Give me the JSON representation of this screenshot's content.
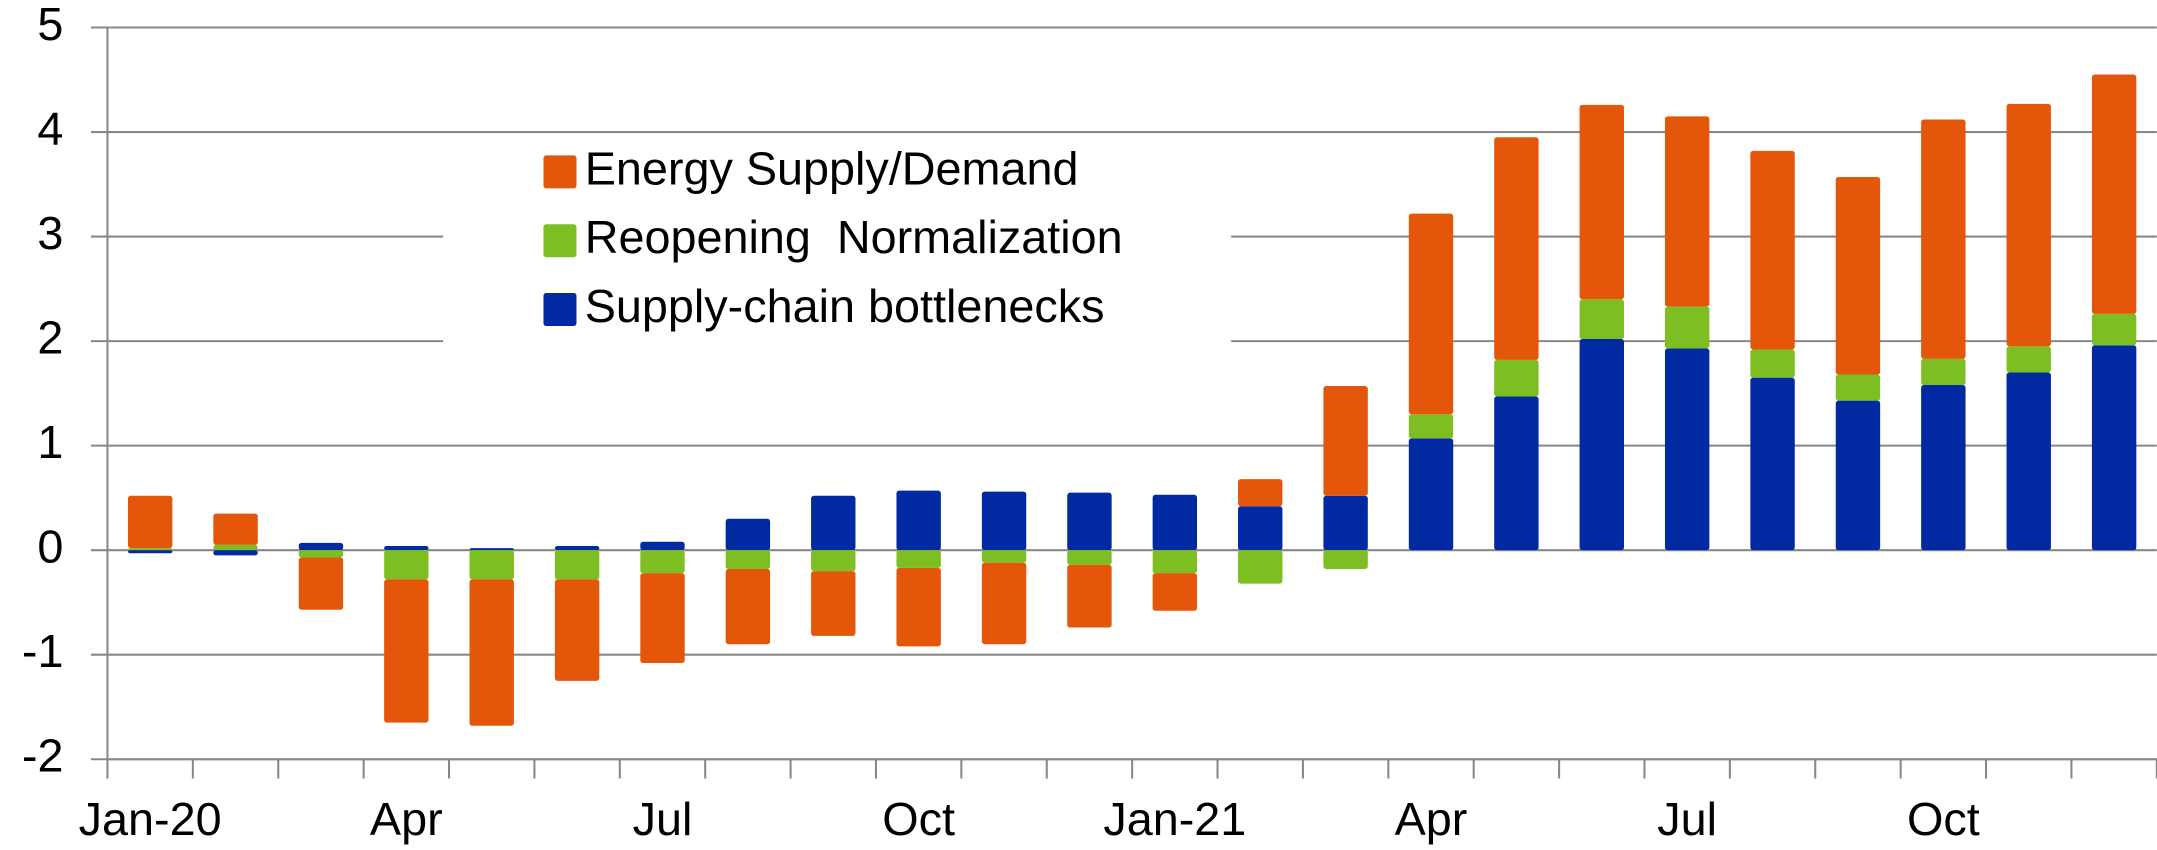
{
  "chart_data": {
    "type": "stacked_bar",
    "categories": [
      "Jan-20",
      null,
      null,
      "Apr",
      null,
      null,
      "Jul",
      null,
      null,
      "Oct",
      null,
      null,
      "Jan-21",
      null,
      null,
      "Apr",
      null,
      null,
      "Jul",
      null,
      null,
      "Oct",
      null,
      null
    ],
    "series": [
      {
        "name": "Energy Supply/Demand",
        "color": "#e4570a",
        "values": [
          0.5,
          0.3,
          -0.5,
          -1.37,
          -1.4,
          -0.97,
          -0.86,
          -0.72,
          -0.62,
          -0.75,
          -0.78,
          -0.6,
          -0.36,
          0.26,
          1.05,
          1.92,
          2.13,
          1.86,
          1.82,
          1.9,
          1.89,
          2.29,
          2.32,
          2.29
        ]
      },
      {
        "name": "Reopening  Normalization",
        "color": "#7dbf22",
        "values": [
          0.02,
          0.05,
          -0.07,
          -0.28,
          -0.28,
          -0.28,
          -0.22,
          -0.18,
          -0.2,
          -0.17,
          -0.12,
          -0.14,
          -0.22,
          -0.32,
          -0.18,
          0.23,
          0.35,
          0.38,
          0.4,
          0.27,
          0.25,
          0.25,
          0.25,
          0.3
        ]
      },
      {
        "name": "Supply-chain bottlenecks",
        "color": "#0129a2",
        "values": [
          -0.03,
          -0.05,
          0.07,
          0.04,
          0.02,
          0.04,
          0.08,
          0.3,
          0.52,
          0.57,
          0.56,
          0.55,
          0.53,
          0.42,
          0.52,
          1.07,
          1.47,
          2.02,
          1.93,
          1.65,
          1.43,
          1.58,
          1.7,
          1.96
        ]
      }
    ],
    "ylim": [
      -2,
      5
    ],
    "yticks": [
      -2,
      -1,
      0,
      1,
      2,
      3,
      4,
      5
    ],
    "grid": true,
    "legend": "upper left"
  }
}
